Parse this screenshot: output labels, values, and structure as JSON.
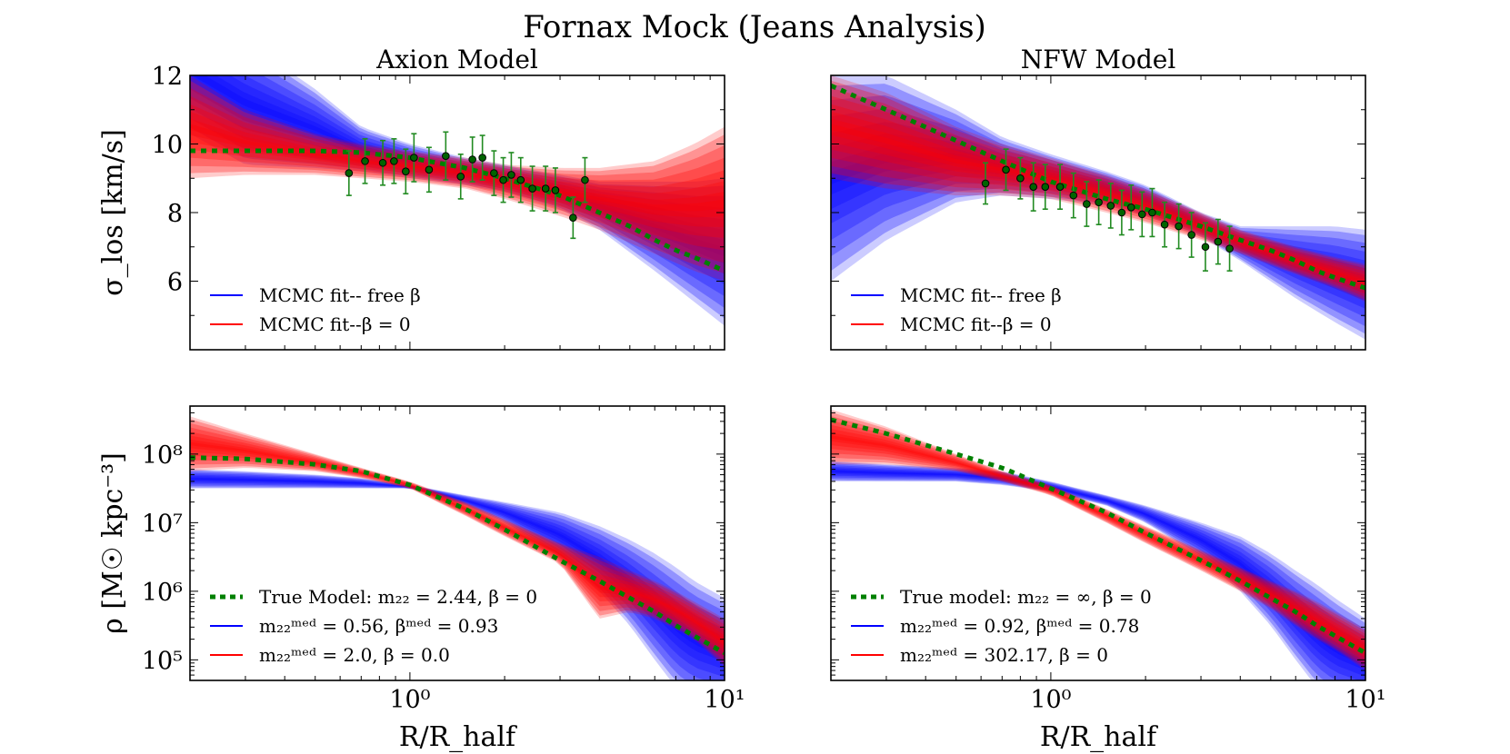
{
  "figure": {
    "title": "Fornax Mock (Jeans Analysis)"
  },
  "colors": {
    "free_beta": "#0000ff",
    "beta_zero": "#ff0000",
    "true_model": "#008000",
    "data_points": "#006400"
  },
  "chart_data": [
    {
      "id": "axion-dispersion",
      "type": "line",
      "title": "Axion Model",
      "xscale": "log",
      "xlim": [
        0.2,
        10
      ],
      "ylim": [
        4,
        12
      ],
      "xticks": [],
      "yticks": [
        6,
        8,
        10,
        12
      ],
      "ytick_labels": [
        "6",
        "8",
        "10",
        "12"
      ],
      "ylabel": "σ_los [km/s]",
      "xlabel": "",
      "legend_loc": "lower-left",
      "legend": [
        {
          "label": "MCMC fit-- free β",
          "color": "#0000ff",
          "style": "solid"
        },
        {
          "label": "MCMC fit--β = 0",
          "color": "#ff0000",
          "style": "solid"
        }
      ],
      "band_free_beta": {
        "x": [
          0.2,
          0.3,
          0.5,
          0.7,
          1.0,
          1.5,
          2.0,
          3.0,
          4.0,
          6.0,
          8.0,
          10.0
        ],
        "lower": [
          10.3,
          9.4,
          9.3,
          9.2,
          9.0,
          8.8,
          8.6,
          8.1,
          7.5,
          6.3,
          5.4,
          4.7
        ],
        "upper": [
          14.0,
          13.0,
          11.6,
          10.5,
          10.0,
          9.6,
          9.4,
          9.1,
          8.9,
          8.9,
          8.9,
          9.0
        ]
      },
      "band_beta_zero": {
        "x": [
          0.2,
          0.3,
          0.5,
          0.7,
          1.0,
          1.5,
          2.0,
          3.0,
          4.0,
          6.0,
          8.0,
          10.0
        ],
        "lower": [
          9.0,
          9.1,
          9.1,
          9.0,
          8.9,
          8.7,
          8.4,
          7.9,
          7.5,
          6.8,
          6.3,
          6.0
        ],
        "upper": [
          12.0,
          11.0,
          10.3,
          10.0,
          9.8,
          9.6,
          9.4,
          9.3,
          9.3,
          9.5,
          10.0,
          10.5
        ]
      },
      "series": [
        {
          "name": "True model",
          "x": [
            0.2,
            0.3,
            0.5,
            0.7,
            1.0,
            1.5,
            2.0,
            3.0,
            4.0,
            5.0,
            6.0,
            7.0,
            8.0,
            10.0
          ],
          "values": [
            9.8,
            9.8,
            9.8,
            9.75,
            9.6,
            9.3,
            9.0,
            8.5,
            8.0,
            7.6,
            7.2,
            6.9,
            6.7,
            6.3
          ]
        }
      ],
      "points": {
        "x": [
          0.64,
          0.72,
          0.82,
          0.89,
          0.97,
          1.03,
          1.15,
          1.3,
          1.45,
          1.58,
          1.7,
          1.85,
          1.98,
          2.1,
          2.25,
          2.45,
          2.7,
          2.9,
          3.3,
          3.6
        ],
        "y": [
          9.15,
          9.5,
          9.45,
          9.5,
          9.2,
          9.6,
          9.25,
          9.65,
          9.05,
          9.55,
          9.6,
          9.15,
          8.95,
          9.1,
          8.95,
          8.7,
          8.7,
          8.65,
          7.85,
          8.95
        ],
        "err": [
          0.65,
          0.65,
          0.65,
          0.65,
          0.65,
          0.7,
          0.65,
          0.7,
          0.65,
          0.65,
          0.65,
          0.65,
          0.65,
          0.65,
          0.65,
          0.65,
          0.65,
          0.65,
          0.6,
          0.65
        ]
      }
    },
    {
      "id": "nfw-dispersion",
      "type": "line",
      "title": "NFW Model",
      "xscale": "log",
      "xlim": [
        0.2,
        10
      ],
      "ylim": [
        4,
        12
      ],
      "xticks": [],
      "yticks": [
        6,
        8,
        10,
        12
      ],
      "ytick_labels": [],
      "ylabel": "",
      "xlabel": "",
      "legend_loc": "lower-left",
      "legend": [
        {
          "label": "MCMC fit-- free β",
          "color": "#0000ff",
          "style": "solid"
        },
        {
          "label": "MCMC fit--β = 0",
          "color": "#ff0000",
          "style": "solid"
        }
      ],
      "band_free_beta": {
        "x": [
          0.2,
          0.3,
          0.5,
          0.7,
          1.0,
          1.5,
          2.0,
          3.0,
          4.0,
          6.0,
          8.0,
          10.0
        ],
        "lower": [
          6.0,
          7.2,
          8.3,
          8.5,
          8.4,
          8.2,
          7.9,
          7.3,
          6.6,
          5.5,
          4.8,
          4.3
        ],
        "upper": [
          12.0,
          12.0,
          11.0,
          10.2,
          9.7,
          9.2,
          8.8,
          8.0,
          7.6,
          7.6,
          7.6,
          7.5
        ]
      },
      "band_beta_zero": {
        "x": [
          0.2,
          0.3,
          0.5,
          0.7,
          1.0,
          1.5,
          2.0,
          3.0,
          4.0,
          6.0,
          8.0,
          10.0
        ],
        "lower": [
          9.0,
          8.7,
          8.5,
          8.5,
          8.4,
          8.0,
          7.7,
          7.2,
          6.8,
          6.2,
          5.8,
          5.4
        ],
        "upper": [
          12.0,
          11.5,
          10.5,
          10.0,
          9.6,
          9.1,
          8.7,
          8.0,
          7.5,
          7.0,
          6.7,
          6.5
        ]
      },
      "series": [
        {
          "name": "True model",
          "x": [
            0.2,
            0.3,
            0.5,
            0.7,
            1.0,
            1.5,
            2.0,
            3.0,
            4.0,
            5.0,
            6.0,
            7.0,
            8.0,
            10.0
          ],
          "values": [
            11.7,
            11.0,
            10.1,
            9.5,
            8.9,
            8.4,
            8.1,
            7.6,
            7.2,
            6.9,
            6.6,
            6.3,
            6.1,
            5.8
          ]
        }
      ],
      "points": {
        "x": [
          0.62,
          0.72,
          0.8,
          0.88,
          0.96,
          1.07,
          1.18,
          1.3,
          1.42,
          1.55,
          1.68,
          1.8,
          1.95,
          2.1,
          2.3,
          2.55,
          2.8,
          3.1,
          3.4,
          3.7
        ],
        "y": [
          8.85,
          9.25,
          9.0,
          8.75,
          8.75,
          8.75,
          8.5,
          8.25,
          8.3,
          8.2,
          8.0,
          8.15,
          7.95,
          8.0,
          7.65,
          7.6,
          7.35,
          7.0,
          7.15,
          6.95
        ],
        "err": [
          0.6,
          0.6,
          0.6,
          0.7,
          0.65,
          0.65,
          0.65,
          0.65,
          0.65,
          0.65,
          0.65,
          0.65,
          0.65,
          0.7,
          0.65,
          0.65,
          0.65,
          0.7,
          0.65,
          0.65
        ]
      }
    },
    {
      "id": "axion-density",
      "type": "line",
      "title": "",
      "xscale": "log",
      "yscale": "log",
      "xlim": [
        0.2,
        10
      ],
      "ylim_log10": [
        4.7,
        8.7
      ],
      "xticks": [
        1,
        10
      ],
      "xtick_labels": [
        "10⁰",
        "10¹"
      ],
      "yticks_log10": [
        5,
        6,
        7,
        8
      ],
      "ytick_labels": [
        "10⁵",
        "10⁶",
        "10⁷",
        "10⁸"
      ],
      "ylabel": "ρ [M☉ kpc⁻³]",
      "xlabel": "R/R_half",
      "legend_loc": "lower-left",
      "legend": [
        {
          "label": "True Model: m₂₂ = 2.44, β = 0",
          "color": "#008000",
          "style": "dashed"
        },
        {
          "label": "m₂₂ᵐᵉᵈ = 0.56, βᵐᵉᵈ = 0.93",
          "color": "#0000ff",
          "style": "solid"
        },
        {
          "label": "m₂₂ᵐᵉᵈ = 2.0, β = 0.0",
          "color": "#ff0000",
          "style": "solid"
        }
      ],
      "band_free_beta": {
        "x": [
          0.2,
          0.3,
          0.5,
          0.7,
          1.0,
          1.5,
          2.0,
          3.0,
          4.0,
          5.0,
          6.0,
          7.0,
          8.0,
          10.0
        ],
        "lower_log10": [
          7.5,
          7.5,
          7.5,
          7.5,
          7.5,
          7.25,
          7.0,
          6.5,
          6.0,
          5.5,
          5.0,
          4.6,
          4.4,
          4.3
        ],
        "upper_log10": [
          7.78,
          7.75,
          7.7,
          7.65,
          7.55,
          7.4,
          7.3,
          7.15,
          6.95,
          6.75,
          6.55,
          6.35,
          6.15,
          5.9
        ]
      },
      "band_beta_zero": {
        "x": [
          0.2,
          0.3,
          0.5,
          0.7,
          1.0,
          1.5,
          2.0,
          3.0,
          4.0,
          5.0,
          6.0,
          7.0,
          8.0,
          10.0
        ],
        "lower_log10": [
          7.75,
          7.8,
          7.75,
          7.65,
          7.5,
          7.1,
          6.8,
          6.4,
          5.6,
          5.7,
          5.6,
          5.45,
          5.3,
          4.9
        ],
        "upper_log10": [
          8.55,
          8.3,
          8.0,
          7.8,
          7.6,
          7.3,
          7.05,
          6.7,
          6.5,
          6.3,
          6.15,
          6.0,
          5.85,
          5.6
        ]
      },
      "series": [
        {
          "name": "True model",
          "x": [
            0.2,
            0.3,
            0.5,
            0.7,
            1.0,
            1.5,
            2.0,
            3.0,
            4.0,
            5.0,
            6.0,
            7.0,
            8.0,
            10.0
          ],
          "values_log10": [
            7.95,
            7.93,
            7.85,
            7.75,
            7.55,
            7.2,
            6.9,
            6.45,
            6.15,
            5.9,
            5.7,
            5.5,
            5.35,
            5.1
          ]
        }
      ]
    },
    {
      "id": "nfw-density",
      "type": "line",
      "title": "",
      "xscale": "log",
      "yscale": "log",
      "xlim": [
        0.2,
        10
      ],
      "ylim_log10": [
        4.7,
        8.7
      ],
      "xticks": [
        1,
        10
      ],
      "xtick_labels": [
        "10⁰",
        "10¹"
      ],
      "yticks_log10": [
        5,
        6,
        7,
        8
      ],
      "ytick_labels": [],
      "ylabel": "",
      "xlabel": "R/R_half",
      "legend_loc": "lower-left",
      "legend": [
        {
          "label": "True model: m₂₂ = ∞, β = 0",
          "color": "#008000",
          "style": "dashed"
        },
        {
          "label": "m₂₂ᵐᵉᵈ = 0.92, βᵐᵉᵈ = 0.78",
          "color": "#0000ff",
          "style": "solid"
        },
        {
          "label": "m₂₂ᵐᵉᵈ = 302.17, β = 0",
          "color": "#ff0000",
          "style": "solid"
        }
      ],
      "band_free_beta": {
        "x": [
          0.2,
          0.3,
          0.5,
          0.7,
          1.0,
          1.5,
          2.0,
          3.0,
          4.0,
          5.0,
          6.0,
          7.0,
          8.0,
          10.0
        ],
        "lower_log10": [
          7.6,
          7.6,
          7.6,
          7.55,
          7.45,
          7.25,
          7.0,
          6.5,
          6.0,
          5.5,
          5.0,
          4.6,
          4.4,
          4.3
        ],
        "upper_log10": [
          7.9,
          7.85,
          7.8,
          7.75,
          7.6,
          7.4,
          7.25,
          7.0,
          6.8,
          6.55,
          6.3,
          6.1,
          5.9,
          5.6
        ]
      },
      "band_beta_zero": {
        "x": [
          0.2,
          0.3,
          0.5,
          0.7,
          1.0,
          1.5,
          2.0,
          3.0,
          4.0,
          5.0,
          6.0,
          7.0,
          8.0,
          10.0
        ],
        "lower_log10": [
          7.85,
          7.85,
          7.75,
          7.6,
          7.4,
          7.0,
          6.7,
          6.3,
          6.0,
          5.75,
          5.5,
          5.3,
          5.15,
          4.85
        ],
        "upper_log10": [
          8.65,
          8.4,
          8.0,
          7.75,
          7.55,
          7.2,
          6.95,
          6.6,
          6.35,
          6.15,
          6.0,
          5.85,
          5.7,
          5.45
        ]
      },
      "series": [
        {
          "name": "True model",
          "x": [
            0.2,
            0.3,
            0.5,
            0.7,
            1.0,
            1.5,
            2.0,
            3.0,
            4.0,
            5.0,
            6.0,
            7.0,
            8.0,
            10.0
          ],
          "values_log10": [
            8.5,
            8.3,
            8.0,
            7.8,
            7.5,
            7.15,
            6.85,
            6.45,
            6.15,
            5.9,
            5.7,
            5.5,
            5.35,
            5.1
          ]
        }
      ]
    }
  ]
}
